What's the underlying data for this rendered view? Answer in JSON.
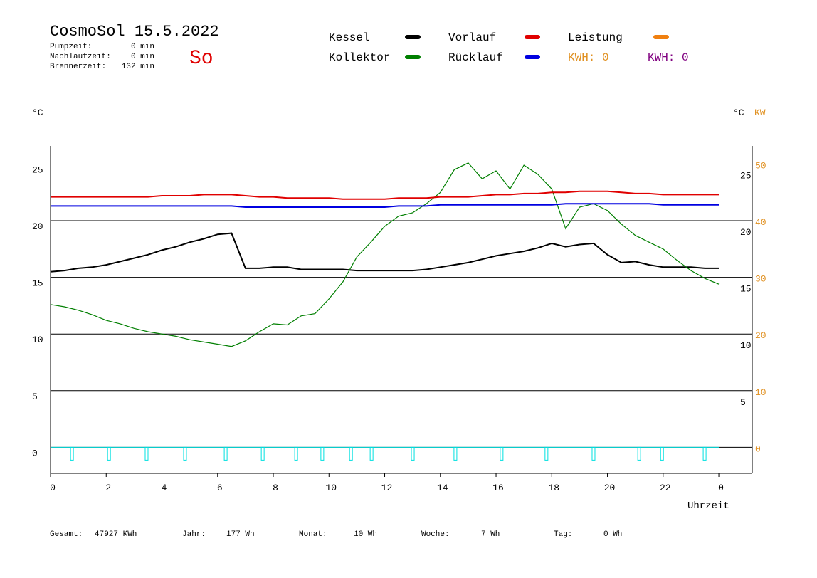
{
  "header": {
    "title": "CosmoSol 15.5.2022",
    "day": "So",
    "stats": [
      [
        "Pumpzeit:",
        "0 min"
      ],
      [
        "Nachlaufzeit:",
        "0 min"
      ],
      [
        "Brennerzeit:",
        "132 min"
      ]
    ]
  },
  "footer": [
    [
      "Gesamt:",
      "47927 KWh"
    ],
    [
      "Jahr:",
      "177 Wh"
    ],
    [
      "Monat:",
      "10 Wh"
    ],
    [
      "Woche:",
      "7 Wh"
    ],
    [
      "Tag:",
      "0 Wh"
    ]
  ],
  "chart_data": {
    "type": "line",
    "y_label": "°C",
    "y2_label_left": "°C",
    "y2_label": "KW",
    "x_label": "Uhrzeit",
    "x": [
      0,
      0.5,
      1,
      1.5,
      2,
      2.5,
      3,
      3.5,
      4,
      4.5,
      5,
      5.5,
      6,
      6.5,
      7,
      7.5,
      8,
      8.5,
      9,
      9.5,
      10,
      10.5,
      11,
      11.5,
      12,
      12.5,
      13,
      13.5,
      14,
      14.5,
      15,
      15.5,
      16,
      16.5,
      17,
      17.5,
      18,
      18.5,
      19,
      19.5,
      20,
      20.5,
      21,
      21.5,
      22,
      22.5,
      23,
      23.5,
      24
    ],
    "series": [
      {
        "name": "Kessel",
        "color": "#000000",
        "values": [
          15.5,
          15.6,
          15.8,
          15.9,
          16.1,
          16.4,
          16.7,
          17.0,
          17.4,
          17.7,
          18.1,
          18.4,
          18.8,
          18.9,
          15.8,
          15.8,
          15.9,
          15.9,
          15.7,
          15.7,
          15.7,
          15.7,
          15.6,
          15.6,
          15.6,
          15.6,
          15.6,
          15.7,
          15.9,
          16.1,
          16.3,
          16.6,
          16.9,
          17.1,
          17.3,
          17.6,
          18.0,
          17.7,
          17.9,
          18.0,
          17.0,
          16.3,
          16.4,
          16.1,
          15.9,
          15.9,
          15.9,
          15.8,
          15.8
        ]
      },
      {
        "name": "Kollektor",
        "color": "#007f00",
        "values": [
          12.6,
          12.4,
          12.1,
          11.7,
          11.2,
          10.9,
          10.5,
          10.2,
          10.0,
          9.8,
          9.5,
          9.3,
          9.1,
          8.9,
          9.4,
          10.2,
          10.9,
          10.8,
          11.6,
          11.8,
          13.1,
          14.6,
          16.8,
          18.1,
          19.5,
          20.4,
          20.7,
          21.5,
          22.5,
          24.5,
          25.1,
          23.7,
          24.4,
          22.8,
          24.9,
          24.1,
          22.8,
          19.3,
          21.2,
          21.5,
          20.9,
          19.7,
          18.7,
          18.1,
          17.5,
          16.5,
          15.6,
          14.9,
          14.4
        ]
      },
      {
        "name": "Vorlauf",
        "color": "#e00000",
        "values": [
          22.1,
          22.1,
          22.1,
          22.1,
          22.1,
          22.1,
          22.1,
          22.1,
          22.2,
          22.2,
          22.2,
          22.3,
          22.3,
          22.3,
          22.2,
          22.1,
          22.1,
          22.0,
          22.0,
          22.0,
          22.0,
          21.9,
          21.9,
          21.9,
          21.9,
          22.0,
          22.0,
          22.0,
          22.1,
          22.1,
          22.1,
          22.2,
          22.3,
          22.3,
          22.4,
          22.4,
          22.5,
          22.5,
          22.6,
          22.6,
          22.6,
          22.5,
          22.4,
          22.4,
          22.3,
          22.3,
          22.3,
          22.3,
          22.3
        ]
      },
      {
        "name": "Rücklauf",
        "color": "#0000e0",
        "values": [
          21.3,
          21.3,
          21.3,
          21.3,
          21.3,
          21.3,
          21.3,
          21.3,
          21.3,
          21.3,
          21.3,
          21.3,
          21.3,
          21.3,
          21.2,
          21.2,
          21.2,
          21.2,
          21.2,
          21.2,
          21.2,
          21.2,
          21.2,
          21.2,
          21.2,
          21.3,
          21.3,
          21.3,
          21.4,
          21.4,
          21.4,
          21.4,
          21.4,
          21.4,
          21.4,
          21.4,
          21.4,
          21.5,
          21.5,
          21.5,
          21.5,
          21.5,
          21.5,
          21.5,
          21.4,
          21.4,
          21.4,
          21.4,
          21.4
        ]
      },
      {
        "name": "Leistung",
        "color": "#f08010",
        "axis": "y2",
        "values": [
          null,
          null,
          null,
          null,
          null,
          null,
          null,
          null,
          null,
          null,
          null,
          null,
          null,
          null,
          null,
          null,
          null,
          null,
          null,
          null,
          null,
          null,
          null,
          null,
          null,
          null,
          null,
          null,
          null,
          null,
          null,
          null,
          null,
          null,
          null,
          null,
          null,
          null,
          null,
          null,
          null,
          null,
          null,
          null,
          null,
          null,
          null,
          null,
          null
        ]
      }
    ],
    "annotations": [
      {
        "text": "KWH: 0",
        "color": "#e09020"
      },
      {
        "text": "KWH: 0",
        "color": "#800080"
      }
    ],
    "pulses": {
      "color": "#00e0e0",
      "x": [
        0.77,
        2.1,
        3.45,
        4.83,
        6.29,
        7.62,
        8.82,
        9.76,
        10.79,
        11.53,
        13.01,
        14.54,
        16.2,
        17.81,
        19.5,
        21.14,
        21.96,
        23.49
      ]
    },
    "xlim": [
      0,
      25.2
    ],
    "xticks": [
      0,
      2,
      4,
      6,
      8,
      10,
      12,
      14,
      16,
      18,
      20,
      22,
      {
        "value": 24,
        "label": "0"
      }
    ],
    "ylim": [
      -2.3,
      26.6
    ],
    "yticks": [
      0,
      5,
      10,
      15,
      20,
      25
    ],
    "yticks_right": [
      5,
      10,
      15,
      20,
      25
    ],
    "y2lim": [
      -4.6,
      53.2
    ],
    "y2ticks": [
      0,
      10,
      20,
      30,
      40,
      50
    ],
    "y2color": "#e09020",
    "grid": true
  }
}
